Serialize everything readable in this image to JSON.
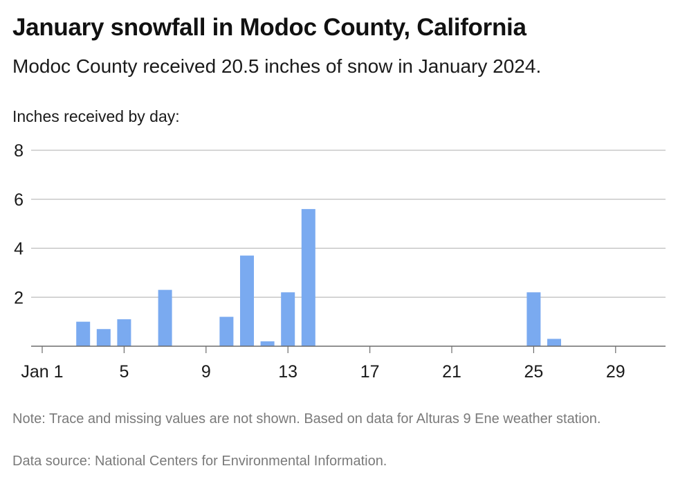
{
  "header": {
    "title": "January snowfall in Modoc County, California",
    "subtitle": "Modoc County received 20.5 inches of snow in January 2024."
  },
  "footer": {
    "note": "Note: Trace and missing values are not shown. Based on data for Alturas 9 Ene weather station.",
    "source": "Data source: National Centers for Environmental Information."
  },
  "chart_data": {
    "type": "bar",
    "ylabel": "Inches received by day:",
    "xlabel": "",
    "ylim": [
      0,
      8
    ],
    "yticks": [
      2,
      4,
      6,
      8
    ],
    "grid": true,
    "bar_color": "#7aaaf0",
    "x_tick_labels": [
      {
        "day": 1,
        "label": "Jan 1"
      },
      {
        "day": 5,
        "label": "5"
      },
      {
        "day": 9,
        "label": "9"
      },
      {
        "day": 13,
        "label": "13"
      },
      {
        "day": 17,
        "label": "17"
      },
      {
        "day": 21,
        "label": "21"
      },
      {
        "day": 25,
        "label": "25"
      },
      {
        "day": 29,
        "label": "29"
      }
    ],
    "x": [
      1,
      2,
      3,
      4,
      5,
      6,
      7,
      8,
      9,
      10,
      11,
      12,
      13,
      14,
      15,
      16,
      17,
      18,
      19,
      20,
      21,
      22,
      23,
      24,
      25,
      26,
      27,
      28,
      29,
      30,
      31
    ],
    "values": [
      0,
      0,
      1.0,
      0.7,
      1.1,
      0,
      2.3,
      0,
      0,
      1.2,
      3.7,
      0.2,
      2.2,
      5.6,
      0,
      0,
      0,
      0,
      0,
      0,
      0,
      0,
      0,
      0,
      2.2,
      0.3,
      0,
      0,
      0,
      0,
      0
    ]
  }
}
